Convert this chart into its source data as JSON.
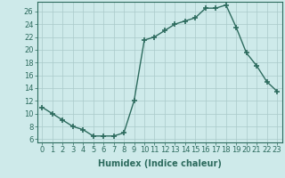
{
  "x": [
    0,
    1,
    2,
    3,
    4,
    5,
    6,
    7,
    8,
    9,
    10,
    11,
    12,
    13,
    14,
    15,
    16,
    17,
    18,
    19,
    20,
    21,
    22,
    23
  ],
  "y": [
    11,
    10,
    9,
    8,
    7.5,
    6.5,
    6.5,
    6.5,
    7,
    12,
    21.5,
    22,
    23,
    24,
    24.5,
    25,
    26.5,
    26.5,
    27,
    23.5,
    19.5,
    17.5,
    15,
    13.5
  ],
  "line_color": "#2d6b5e",
  "marker": "+",
  "marker_size": 4,
  "background_color": "#ceeaea",
  "grid_color": "#aacaca",
  "xlabel": "Humidex (Indice chaleur)",
  "ylabel_ticks": [
    6,
    8,
    10,
    12,
    14,
    16,
    18,
    20,
    22,
    24,
    26
  ],
  "ylim": [
    5.5,
    27.5
  ],
  "xlim": [
    -0.5,
    23.5
  ],
  "xticks": [
    0,
    1,
    2,
    3,
    4,
    5,
    6,
    7,
    8,
    9,
    10,
    11,
    12,
    13,
    14,
    15,
    16,
    17,
    18,
    19,
    20,
    21,
    22,
    23
  ],
  "xlabel_fontsize": 7,
  "tick_fontsize": 6,
  "tick_color": "#2d6b5e",
  "axis_color": "#2d6b5e",
  "linewidth": 1.0,
  "marker_linewidth": 1.2
}
